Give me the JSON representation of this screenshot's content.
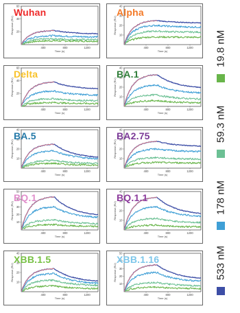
{
  "chart_data": {
    "type": "line",
    "xlabel": "Time (s)",
    "ylabel": "Response (RU)",
    "xticks": [
      400,
      800,
      1200
    ],
    "xlim": [
      0,
      1400
    ],
    "association_end": 600,
    "concentrations": [
      {
        "name": "533 nM",
        "color": "#3d4ea6"
      },
      {
        "name": "178 nM",
        "color": "#3f9fd6"
      },
      {
        "name": "59.3 nM",
        "color": "#6cc094"
      },
      {
        "name": "19.8 nM",
        "color": "#68b54a"
      }
    ],
    "fit_color": "#f08080",
    "panels": [
      {
        "title": "Wuhan",
        "color": "#ee2a2a",
        "ymax": 60,
        "yticks": [
          20,
          40,
          60
        ],
        "peaks": [
          22,
          14,
          9,
          6
        ],
        "off": [
          0.25,
          0.15,
          0.15,
          0.1
        ]
      },
      {
        "title": "Alpha",
        "color": "#f37a28",
        "ymax": 40,
        "yticks": [
          10,
          20,
          30,
          40
        ],
        "peaks": [
          25,
          20,
          14,
          8
        ],
        "off": [
          0.1,
          0.1,
          0.08,
          0.05
        ]
      },
      {
        "title": "Delta",
        "color": "#f8c22a",
        "ymax": 60,
        "yticks": [
          20,
          40,
          60
        ],
        "peaks": [
          38,
          24,
          12,
          6
        ],
        "off": [
          0.3,
          0.3,
          0.3,
          0.3
        ]
      },
      {
        "title": "BA.1",
        "color": "#2f7d38",
        "ymax": 40,
        "yticks": [
          10,
          20,
          30,
          40
        ],
        "peaks": [
          33,
          22,
          12,
          6
        ],
        "off": [
          0.45,
          0.4,
          0.4,
          0.4
        ]
      },
      {
        "title": "BA.5",
        "color": "#2479a8",
        "ymax": 40,
        "yticks": [
          10,
          20,
          30,
          40
        ],
        "peaks": [
          25,
          18,
          8,
          5
        ],
        "off": [
          0.6,
          0.5,
          0.4,
          0.4
        ]
      },
      {
        "title": "BA2.75",
        "color": "#7b3a97",
        "ymax": 40,
        "yticks": [
          10,
          20,
          30,
          40
        ],
        "peaks": [
          28,
          20,
          11,
          6
        ],
        "off": [
          0.2,
          0.15,
          0.15,
          0.1
        ]
      },
      {
        "title": "BQ.1",
        "color": "#e08ecb",
        "ymax": 50,
        "yticks": [
          10,
          20,
          30,
          40,
          50
        ],
        "peaks": [
          43,
          30,
          13,
          7
        ],
        "off": [
          0.6,
          0.5,
          0.4,
          0.4
        ]
      },
      {
        "title": "BQ.1.1",
        "color": "#8c3a9c",
        "ymax": 40,
        "yticks": [
          10,
          20,
          30,
          40
        ],
        "peaks": [
          34,
          24,
          12,
          5
        ],
        "off": [
          0.55,
          0.45,
          0.4,
          0.4
        ]
      },
      {
        "title": "XBB.1.5",
        "color": "#76c043",
        "ymax": 40,
        "yticks": [
          10,
          20,
          30,
          40
        ],
        "peaks": [
          24,
          19,
          12,
          6
        ],
        "off": [
          0.6,
          0.6,
          0.5,
          0.5
        ]
      },
      {
        "title": "XBB.1.16",
        "color": "#7cc6ea",
        "ymax": 50,
        "yticks": [
          10,
          20,
          30,
          40,
          50
        ],
        "peaks": [
          35,
          25,
          12,
          6
        ],
        "off": [
          0.55,
          0.5,
          0.4,
          0.35
        ]
      }
    ]
  }
}
